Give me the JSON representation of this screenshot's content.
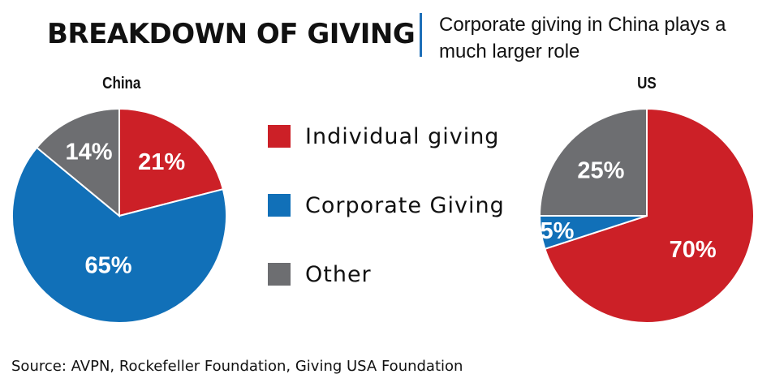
{
  "title": "BREAKDOWN OF GIVING",
  "subtitle": "Corporate giving in China plays a much larger role",
  "source": "Source: AVPN, Rockefeller Foundation, Giving USA Foundation",
  "legend": [
    {
      "label": "Individual giving",
      "color": "#cc2027"
    },
    {
      "label": "Corporate Giving",
      "color": "#1170b8"
    },
    {
      "label": "Other",
      "color": "#6d6e71"
    }
  ],
  "chart_data": [
    {
      "type": "pie",
      "title": "China",
      "series": [
        {
          "name": "Individual giving",
          "value": 21,
          "label": "21%",
          "color": "#cc2027"
        },
        {
          "name": "Corporate Giving",
          "value": 65,
          "label": "65%",
          "color": "#1170b8"
        },
        {
          "name": "Other",
          "value": 14,
          "label": "14%",
          "color": "#6d6e71"
        }
      ]
    },
    {
      "type": "pie",
      "title": "US",
      "series": [
        {
          "name": "Individual giving",
          "value": 70,
          "label": "70%",
          "color": "#cc2027"
        },
        {
          "name": "Corporate Giving",
          "value": 5,
          "label": "5%",
          "color": "#1170b8"
        },
        {
          "name": "Other",
          "value": 25,
          "label": "25%",
          "color": "#6d6e71"
        }
      ]
    }
  ]
}
